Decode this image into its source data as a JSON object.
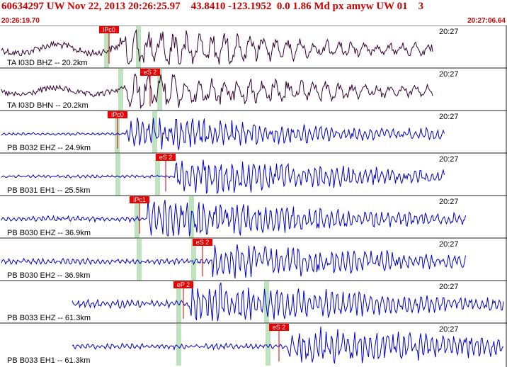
{
  "header": {
    "title": "60634297 UW Nov 22, 2013 20:26:25.97    43.8410 -123.1952  0.0 1.86 Md px amyw UW 01    3",
    "start_time": "20:26:19.70",
    "end_time": "20:27:06.64"
  },
  "colors": {
    "header_text": "#cc0000",
    "trace_dark": "#330033",
    "trace_blue": "#0000cc",
    "pick_box": "#ee0000",
    "pick_text": "#ffffff",
    "pick_line": "#cc0000",
    "green_marker": "#bfe3bf",
    "divider": "#222222"
  },
  "traces": [
    {
      "name": "trace-ta-i03d-bhz",
      "label": "TA I03D BHZ -- 20.2km",
      "time_label": "20:27",
      "color": "trace_dark",
      "pick": "iPc0"
    },
    {
      "name": "trace-ta-i03d-bhn",
      "label": "TA I03D BHN -- 20.2km",
      "time_label": "20:27",
      "color": "trace_dark",
      "pick": "eS 2"
    },
    {
      "name": "trace-pb-b032-ehz",
      "label": "PB B032 EHZ -- 24.9km",
      "time_label": "20:27",
      "color": "trace_blue",
      "pick": "iPc0"
    },
    {
      "name": "trace-pb-b031-eh1",
      "label": "PB B031 EH1 -- 25.5km",
      "time_label": "20:27",
      "color": "trace_blue",
      "pick": "eS 2"
    },
    {
      "name": "trace-pb-b030-ehz",
      "label": "PB B030 EHZ -- 36.9km",
      "time_label": "20:27",
      "color": "trace_blue",
      "pick": "iPc1"
    },
    {
      "name": "trace-pb-b030-eh2",
      "label": "PB B030 EH2 -- 36.9km",
      "time_label": "20:27",
      "color": "trace_blue",
      "pick": "eS 2"
    },
    {
      "name": "trace-pb-b033-ehz",
      "label": "PB B033 EHZ -- 61.3km",
      "time_label": "20:27",
      "color": "trace_blue",
      "pick": "eP 2"
    },
    {
      "name": "trace-pb-b033-eh1",
      "label": "PB B033 EH1 -- 61.3km",
      "time_label": "20:27",
      "color": "trace_blue",
      "pick": "eS 2"
    }
  ]
}
